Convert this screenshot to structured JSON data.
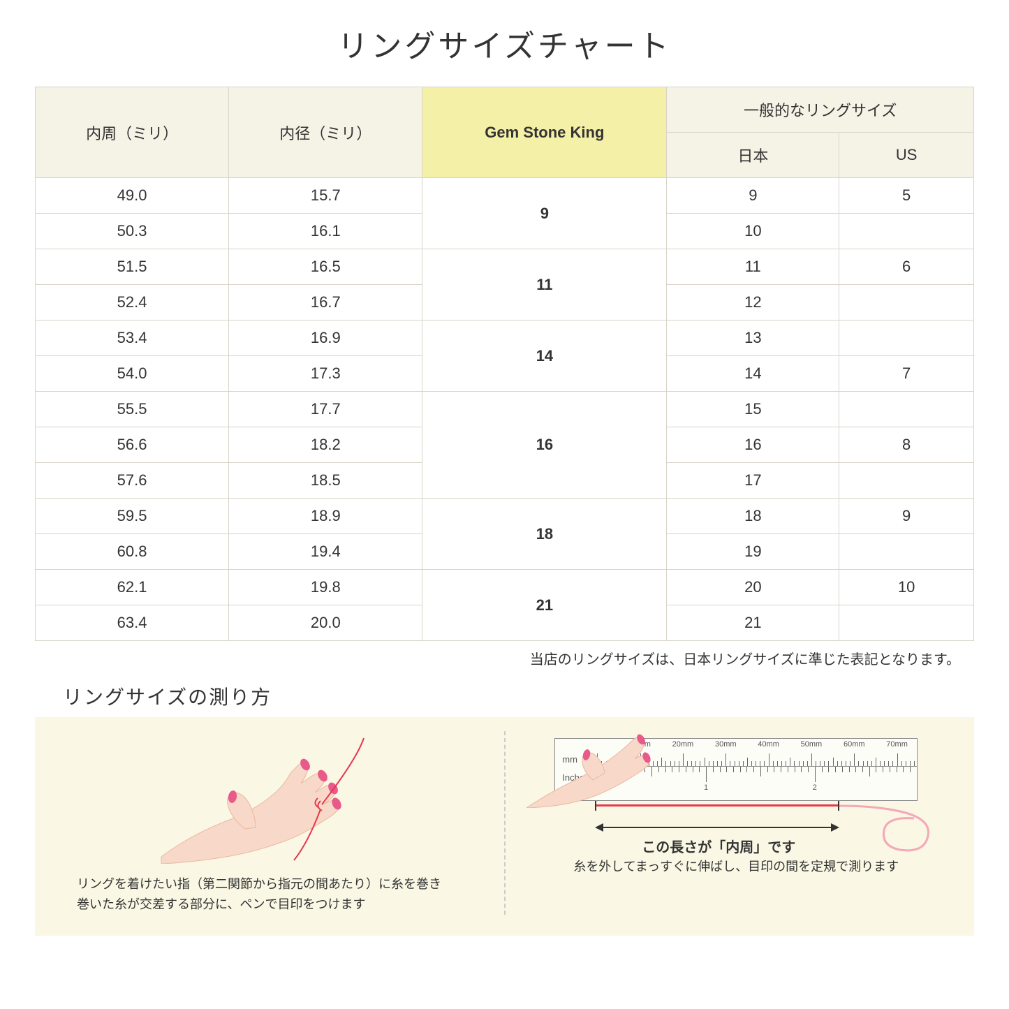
{
  "title": "リングサイズチャート",
  "table": {
    "headers": {
      "circumference": "内周（ミリ）",
      "diameter": "内径（ミリ）",
      "gsk": "Gem Stone King",
      "general": "一般的なリングサイズ",
      "japan": "日本",
      "us": "US"
    },
    "rows": [
      {
        "circ": "49.0",
        "dia": "15.7",
        "gsk": "9",
        "gsk_span": 2,
        "jp": "9",
        "us": "5"
      },
      {
        "circ": "50.3",
        "dia": "16.1",
        "jp": "10",
        "us": ""
      },
      {
        "circ": "51.5",
        "dia": "16.5",
        "gsk": "11",
        "gsk_span": 2,
        "jp": "11",
        "us": "6"
      },
      {
        "circ": "52.4",
        "dia": "16.7",
        "jp": "12",
        "us": ""
      },
      {
        "circ": "53.4",
        "dia": "16.9",
        "gsk": "14",
        "gsk_span": 2,
        "jp": "13",
        "us": ""
      },
      {
        "circ": "54.0",
        "dia": "17.3",
        "jp": "14",
        "us": "7"
      },
      {
        "circ": "55.5",
        "dia": "17.7",
        "gsk": "16",
        "gsk_span": 3,
        "jp": "15",
        "us": ""
      },
      {
        "circ": "56.6",
        "dia": "18.2",
        "jp": "16",
        "us": "8"
      },
      {
        "circ": "57.6",
        "dia": "18.5",
        "jp": "17",
        "us": ""
      },
      {
        "circ": "59.5",
        "dia": "18.9",
        "gsk": "18",
        "gsk_span": 2,
        "jp": "18",
        "us": "9"
      },
      {
        "circ": "60.8",
        "dia": "19.4",
        "jp": "19",
        "us": ""
      },
      {
        "circ": "62.1",
        "dia": "19.8",
        "gsk": "21",
        "gsk_span": 2,
        "jp": "20",
        "us": "10"
      },
      {
        "circ": "63.4",
        "dia": "20.0",
        "jp": "21",
        "us": ""
      }
    ]
  },
  "note": "当店のリングサイズは、日本リングサイズに準じた表記となります。",
  "howto": {
    "title": "リングサイズの測り方",
    "left_text_1": "リングを着けたい指（第二関節から指元の間あたり）に糸を巻き",
    "left_text_2": "巻いた糸が交差する部分に、ペンで目印をつけます",
    "right_arrow_label": "この長さが「内周」です",
    "right_text": "糸を外してまっすぐに伸ばし、目印の間を定規で測ります",
    "ruler": {
      "mm_label": "mm",
      "in_label": "Inches",
      "mm_major_labels": [
        "10mm",
        "20mm",
        "30mm",
        "40mm",
        "50mm",
        "60mm",
        "70mm"
      ],
      "in_major_labels": [
        "1",
        "2"
      ]
    }
  },
  "colors": {
    "header_bg": "#f5f2e6",
    "highlight_bg": "#f5f0a8",
    "border": "#d8d4c8",
    "panel_bg": "#faf7e4",
    "thread": "#e63950",
    "skin": "#f8d9c9",
    "nail": "#e85a8a"
  }
}
